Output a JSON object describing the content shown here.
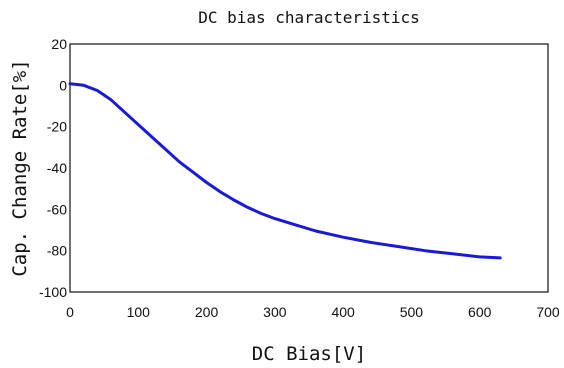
{
  "chart_data": {
    "type": "line",
    "title": "DC bias characteristics",
    "xlabel": "DC Bias[V]",
    "ylabel": "Cap. Change Rate[%]",
    "xlim": [
      0,
      700
    ],
    "ylim": [
      -100,
      20
    ],
    "xticks": [
      0,
      100,
      200,
      300,
      400,
      500,
      600,
      700
    ],
    "yticks": [
      20,
      0,
      -20,
      -40,
      -60,
      -80,
      -100
    ],
    "grid": true,
    "colors": {
      "series": "#1a1ad6",
      "grid": "#9a9a9a",
      "frame": "#111111"
    },
    "series": [
      {
        "x": [
          0,
          20,
          40,
          60,
          80,
          100,
          120,
          140,
          160,
          180,
          200,
          220,
          240,
          260,
          280,
          300,
          330,
          360,
          400,
          440,
          480,
          520,
          560,
          600,
          630
        ],
        "values": [
          0.8,
          0,
          -2.5,
          -7,
          -13,
          -19,
          -25,
          -31,
          -37,
          -42,
          -47,
          -51.5,
          -55.5,
          -59,
          -62,
          -64.5,
          -67.5,
          -70.5,
          -73.5,
          -76,
          -78,
          -80,
          -81.5,
          -83,
          -83.5
        ]
      }
    ]
  }
}
